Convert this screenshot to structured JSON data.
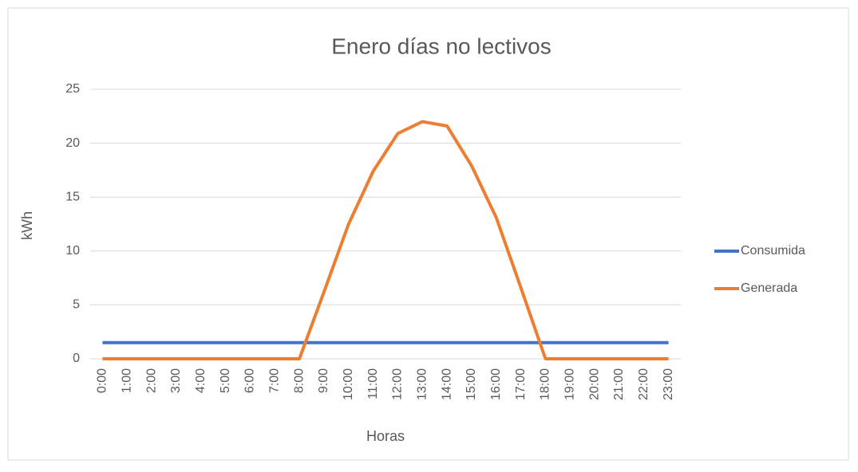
{
  "chart_data": {
    "type": "line",
    "title": "Enero días no lectivos",
    "xlabel": "Horas",
    "ylabel": "kWh",
    "categories": [
      "0:00",
      "1:00",
      "2:00",
      "3:00",
      "4:00",
      "5:00",
      "6:00",
      "7:00",
      "8:00",
      "9:00",
      "10:00",
      "11:00",
      "12:00",
      "13:00",
      "14:00",
      "15:00",
      "16:00",
      "17:00",
      "18:00",
      "19:00",
      "20:00",
      "21:00",
      "22:00",
      "23:00"
    ],
    "series": [
      {
        "name": "Consumida",
        "color": "#4472c4",
        "values": [
          1.5,
          1.5,
          1.5,
          1.5,
          1.5,
          1.5,
          1.5,
          1.5,
          1.5,
          1.5,
          1.5,
          1.5,
          1.5,
          1.5,
          1.5,
          1.5,
          1.5,
          1.5,
          1.5,
          1.5,
          1.5,
          1.5,
          1.5,
          1.5
        ]
      },
      {
        "name": "Generada",
        "color": "#ed7d31",
        "values": [
          0,
          0,
          0,
          0,
          0,
          0,
          0,
          0,
          0,
          6.2,
          12.5,
          17.4,
          20.9,
          22,
          21.6,
          17.9,
          13.1,
          6.6,
          0,
          0,
          0,
          0,
          0,
          0
        ]
      }
    ],
    "ylim": [
      0,
      25
    ],
    "yticks": [
      0,
      5,
      10,
      15,
      20,
      25
    ],
    "grid": true,
    "legend": "right"
  }
}
